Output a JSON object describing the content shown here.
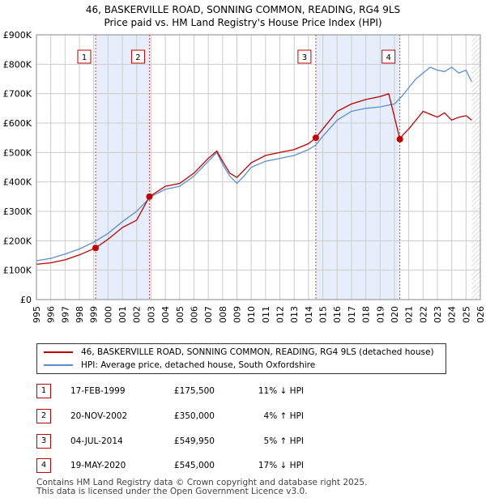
{
  "header": {
    "line1": "46, BASKERVILLE ROAD, SONNING COMMON, READING, RG4 9LS",
    "line2": "Price paid vs. HM Land Registry's House Price Index (HPI)"
  },
  "chart_data": {
    "type": "line",
    "title": "46, BASKERVILLE ROAD, SONNING COMMON, READING, RG4 9LS",
    "subtitle": "Price paid vs. HM Land Registry's House Price Index (HPI)",
    "xlabel": "",
    "ylabel": "",
    "xlim": [
      1995,
      2026
    ],
    "ylim": [
      0,
      900000
    ],
    "yticks": [
      0,
      100000,
      200000,
      300000,
      400000,
      500000,
      600000,
      700000,
      800000,
      900000
    ],
    "ytick_labels": [
      "£0",
      "£100K",
      "£200K",
      "£300K",
      "£400K",
      "£500K",
      "£600K",
      "£700K",
      "£800K",
      "£900K"
    ],
    "xticks": [
      1995,
      1996,
      1997,
      1998,
      1999,
      2000,
      2001,
      2002,
      2003,
      2004,
      2005,
      2006,
      2007,
      2008,
      2009,
      2010,
      2011,
      2012,
      2013,
      2014,
      2015,
      2016,
      2017,
      2018,
      2019,
      2020,
      2021,
      2022,
      2023,
      2024,
      2025,
      2026
    ],
    "grid": true,
    "legend_position": "below",
    "colors": {
      "property": "#c00000",
      "hpi": "#5b8fd0",
      "shade": "#e6eefb",
      "grid": "#cccccc",
      "vline": "#d94040"
    },
    "series": [
      {
        "name": "46, BASKERVILLE ROAD, SONNING COMMON, READING, RG4 9LS (detached house)",
        "color": "#c00000",
        "x": [
          1995.0,
          1996.0,
          1997.0,
          1998.0,
          1999.13,
          2000.0,
          2001.0,
          2002.0,
          2002.89,
          2004.0,
          2005.0,
          2006.0,
          2007.0,
          2007.6,
          2008.0,
          2008.5,
          2009.0,
          2009.5,
          2010.0,
          2011.0,
          2012.0,
          2013.0,
          2014.0,
          2014.51,
          2015.0,
          2016.0,
          2017.0,
          2018.0,
          2019.0,
          2019.6,
          2020.38,
          2020.6,
          2021.0,
          2021.5,
          2022.0,
          2022.5,
          2023.0,
          2023.5,
          2024.0,
          2024.5,
          2025.0,
          2025.4
        ],
        "values": [
          120000,
          125000,
          135000,
          152000,
          175500,
          205000,
          245000,
          270000,
          350000,
          385000,
          395000,
          430000,
          480000,
          505000,
          470000,
          430000,
          415000,
          440000,
          465000,
          490000,
          500000,
          510000,
          530000,
          549950,
          580000,
          640000,
          665000,
          680000,
          690000,
          700000,
          545000,
          560000,
          580000,
          610000,
          640000,
          630000,
          620000,
          635000,
          610000,
          620000,
          625000,
          610000
        ]
      },
      {
        "name": "HPI: Average price, detached house, South Oxfordshire",
        "color": "#5b8fd0",
        "x": [
          1995.0,
          1996.0,
          1997.0,
          1998.0,
          1999.0,
          2000.0,
          2001.0,
          2002.0,
          2003.0,
          2004.0,
          2005.0,
          2006.0,
          2007.0,
          2007.6,
          2008.0,
          2008.5,
          2009.0,
          2009.5,
          2010.0,
          2011.0,
          2012.0,
          2013.0,
          2014.0,
          2014.5,
          2015.0,
          2016.0,
          2017.0,
          2018.0,
          2019.0,
          2020.0,
          2020.5,
          2021.0,
          2021.5,
          2022.0,
          2022.5,
          2023.0,
          2023.5,
          2024.0,
          2024.5,
          2025.0,
          2025.4
        ],
        "values": [
          132000,
          140000,
          155000,
          172000,
          195000,
          225000,
          265000,
          300000,
          350000,
          375000,
          385000,
          420000,
          470000,
          500000,
          460000,
          420000,
          395000,
          420000,
          450000,
          470000,
          480000,
          490000,
          510000,
          525000,
          555000,
          610000,
          640000,
          650000,
          655000,
          665000,
          690000,
          720000,
          750000,
          770000,
          790000,
          780000,
          775000,
          790000,
          770000,
          780000,
          740000
        ]
      }
    ],
    "sales": [
      {
        "n": "1",
        "x": 1999.13,
        "value": 175500
      },
      {
        "n": "2",
        "x": 2002.89,
        "value": 350000
      },
      {
        "n": "3",
        "x": 2014.51,
        "value": 549950
      },
      {
        "n": "4",
        "x": 2020.38,
        "value": 545000
      }
    ],
    "shaded_ranges": [
      [
        1999.13,
        2002.89
      ],
      [
        2014.51,
        2020.38
      ]
    ],
    "hatch_from": 2025.4
  },
  "legend": {
    "property_label": "46, BASKERVILLE ROAD, SONNING COMMON, READING, RG4 9LS (detached house)",
    "hpi_label": "HPI: Average price, detached house, South Oxfordshire"
  },
  "sales_table": [
    {
      "n": "1",
      "date": "17-FEB-1999",
      "price": "£175,500",
      "hpi": "11% ↓ HPI"
    },
    {
      "n": "2",
      "date": "20-NOV-2002",
      "price": "£350,000",
      "hpi": "4% ↑ HPI"
    },
    {
      "n": "3",
      "date": "04-JUL-2014",
      "price": "£549,950",
      "hpi": "5% ↑ HPI"
    },
    {
      "n": "4",
      "date": "19-MAY-2020",
      "price": "£545,000",
      "hpi": "17% ↓ HPI"
    }
  ],
  "footer": {
    "line1": "Contains HM Land Registry data © Crown copyright and database right 2025.",
    "line2": "This data is licensed under the Open Government Licence v3.0."
  }
}
